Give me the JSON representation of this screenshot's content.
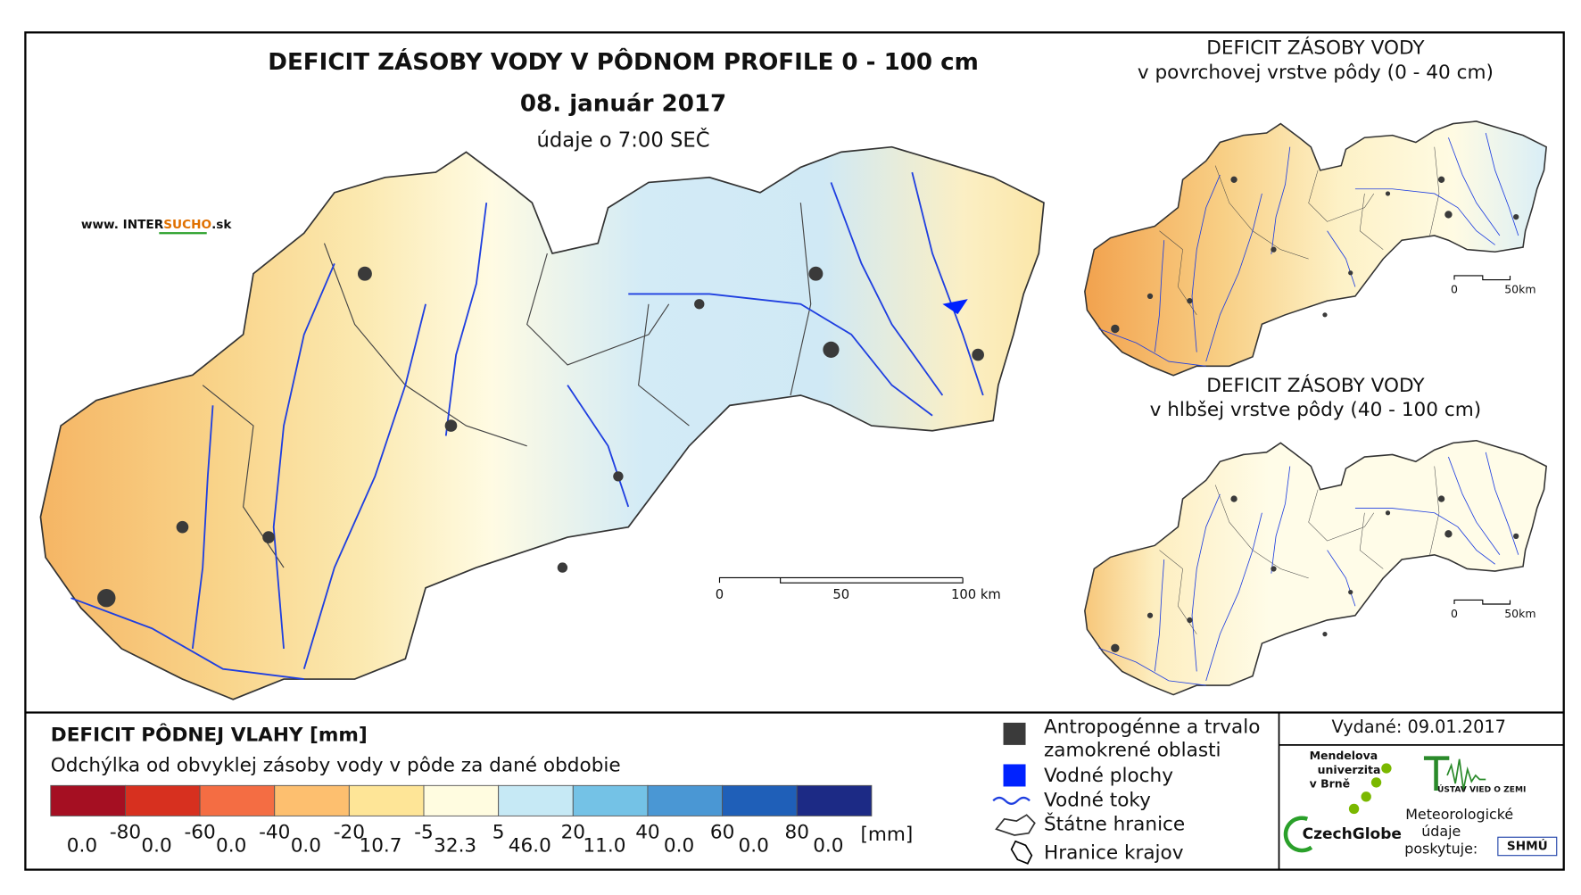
{
  "title": "DEFICIT ZÁSOBY VODY V PÔDNOM PROFILE 0 - 100 cm",
  "date": "08. január 2017",
  "time": "údaje o 7:00 SEČ",
  "website": {
    "prefix": "www. INTER",
    "highlight": "SUCHO",
    "suffix": ".sk"
  },
  "scale_bar": [
    "0",
    "50",
    "100 km"
  ],
  "inset_maps": [
    {
      "title": "DEFICIT ZÁSOBY VODY",
      "subtitle": "v povrchovej vrstve pôdy (0 - 40 cm)",
      "scale_labels": [
        "0",
        "50km"
      ]
    },
    {
      "title": "DEFICIT ZÁSOBY VODY",
      "subtitle": "v hlbšej vrstve pôdy (40 - 100 cm)",
      "scale_labels": [
        "0",
        "50km"
      ]
    }
  ],
  "legend": {
    "title": "DEFICIT PÔDNEJ VLAHY [mm]",
    "subtitle": "Odchýlka od obvyklej zásoby vody v pôde za dané obdobie",
    "colors": [
      "#a50f22",
      "#d7301f",
      "#f46d43",
      "#fdbf6f",
      "#fee597",
      "#fffce0",
      "#c6e9f5",
      "#74c2e6",
      "#4a97d4",
      "#1f5fb8",
      "#1c2a85"
    ],
    "breaks": [
      "-80",
      "-60",
      "-40",
      "-20",
      "-5",
      "5",
      "20",
      "40",
      "60",
      "80"
    ],
    "shares": [
      "0.0",
      "0.0",
      "0.0",
      "0.0",
      "10.7",
      "32.3",
      "46.0",
      "11.0",
      "0.0",
      "0.0",
      "0.0"
    ],
    "unit": "[mm]"
  },
  "map_legend": [
    {
      "line1": "Antropogénne a trvalo",
      "line2": "zamokrené oblasti"
    },
    {
      "line1": "Vodné plochy"
    },
    {
      "line1": "Vodné toky"
    },
    {
      "line1": "Štátne hranice"
    },
    {
      "line1": "Hranice krajov"
    }
  ],
  "issued": "Vydané: 09.01.2017",
  "providers": {
    "mendel": [
      "Mendelova",
      "univerzita",
      "v Brně"
    ],
    "czechglobe": "CzechGlobe",
    "uvz": "ÚSTAV VIED O ZEMI",
    "meteo": [
      "Meteorologické",
      "údaje",
      "poskytuje:"
    ],
    "shmu": "SHMÚ"
  }
}
